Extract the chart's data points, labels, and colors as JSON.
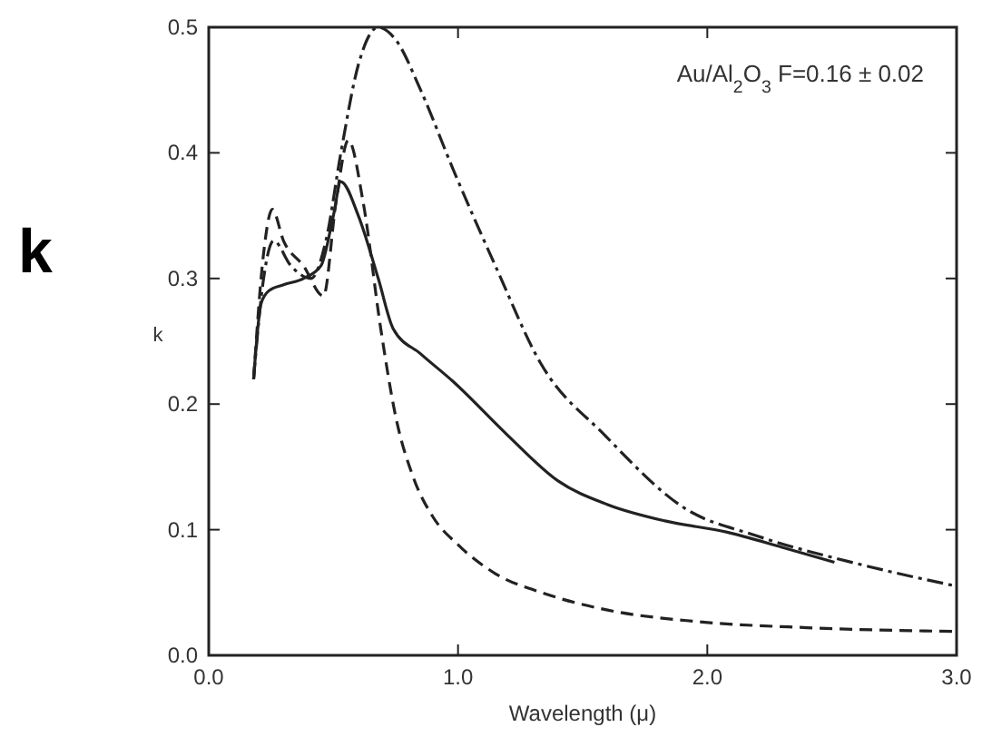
{
  "chart_data": {
    "type": "line",
    "xlabel": "Wavelength  (μ)",
    "ylabel": "k",
    "annotations": [
      "k",
      "Au/Al$_{2}$O$_{3}$    F=0.16 ± 0.02"
    ],
    "xlim": [
      0,
      3
    ],
    "xticks": [
      {
        "value": 0,
        "label": "0.0"
      },
      {
        "value": 1,
        "label": "1.0"
      },
      {
        "value": 2,
        "label": "2.0"
      },
      {
        "value": 3,
        "label": "3.0"
      }
    ],
    "ylim": [
      0,
      0.5
    ],
    "yticks": [
      {
        "value": 0,
        "label": "0.0"
      },
      0.1,
      0.2,
      0.3,
      0.4,
      0.5
    ],
    "grid": false,
    "series": [
      {
        "color": "#222222",
        "line_style": "solid",
        "x": [
          0.18,
          0.21,
          0.24,
          0.3,
          0.38,
          0.45,
          0.5,
          0.53,
          0.6,
          0.68,
          0.74,
          0.85,
          0.98,
          1.2,
          1.4,
          1.6,
          1.83,
          2.08,
          2.3,
          2.51
        ],
        "values": [
          0.22,
          0.28,
          0.29,
          0.295,
          0.3,
          0.31,
          0.35,
          0.377,
          0.35,
          0.3,
          0.26,
          0.24,
          0.218,
          0.175,
          0.139,
          0.12,
          0.107,
          0.098,
          0.086,
          0.074
        ]
      },
      {
        "color": "#222222",
        "line_style": "dashed",
        "x": [
          0.18,
          0.22,
          0.255,
          0.3,
          0.38,
          0.46,
          0.51,
          0.56,
          0.62,
          0.69,
          0.75,
          0.82,
          0.9,
          1.0,
          1.15,
          1.35,
          1.6,
          1.95,
          2.4,
          3.0
        ],
        "values": [
          0.22,
          0.32,
          0.355,
          0.33,
          0.31,
          0.286,
          0.36,
          0.41,
          0.36,
          0.26,
          0.19,
          0.142,
          0.11,
          0.088,
          0.065,
          0.049,
          0.036,
          0.027,
          0.022,
          0.019
        ]
      },
      {
        "color": "#222222",
        "line_style": "dashdot",
        "x": [
          0.18,
          0.22,
          0.26,
          0.33,
          0.41,
          0.47,
          0.53,
          0.6,
          0.68,
          0.75,
          0.85,
          0.98,
          1.15,
          1.33,
          1.59,
          1.91,
          2.2,
          2.6,
          3.0
        ],
        "values": [
          0.22,
          0.3,
          0.33,
          0.31,
          0.3,
          0.33,
          0.4,
          0.47,
          0.5,
          0.49,
          0.45,
          0.387,
          0.31,
          0.233,
          0.175,
          0.117,
          0.095,
          0.073,
          0.055
        ]
      }
    ]
  }
}
